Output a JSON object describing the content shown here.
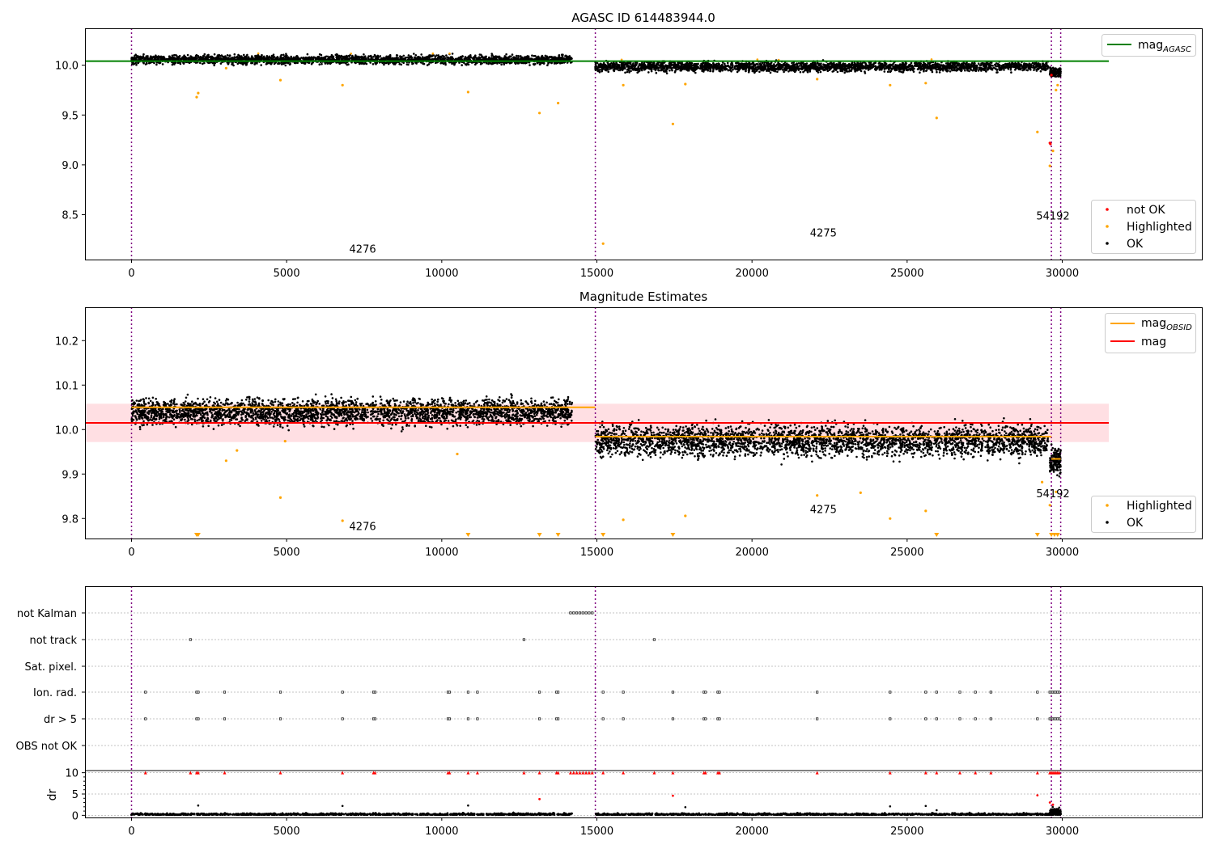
{
  "figure": {
    "title_top": "AGASC ID 614483944.0",
    "title_mid": "Magnitude Estimates"
  },
  "colors": {
    "ok": "#000000",
    "highlighted": "#ffa500",
    "not_ok": "#ff0000",
    "mag_agasc_line": "#008000",
    "mag_obsid_line": "#ffa500",
    "mag_line": "#ff0000",
    "mag_band": "#ffc0c8",
    "obs_boundary": "#800080",
    "grid": "#b0b0b0"
  },
  "chart_data": [
    {
      "name": "agasc",
      "type": "scatter",
      "title": "AGASC ID 614483944.0",
      "xlim": [
        -1500,
        34500
      ],
      "ylim": [
        8.05,
        10.37
      ],
      "xticks": [
        0,
        5000,
        10000,
        15000,
        20000,
        25000,
        30000
      ],
      "yticks": [
        8.5,
        9.0,
        9.5,
        10.0
      ],
      "ytick_labels": [
        "8.5",
        "9.0",
        "9.5",
        "10.0"
      ],
      "legend": {
        "position": "upper-right",
        "entries": [
          {
            "label": "mag",
            "sub": "AGASC",
            "kind": "line",
            "color": "#008000"
          }
        ]
      },
      "legend2": {
        "position": "lower-right",
        "entries": [
          {
            "label": "not OK",
            "kind": "dot",
            "color": "#ff0000"
          },
          {
            "label": "Highlighted",
            "kind": "dot",
            "color": "#ffa500"
          },
          {
            "label": "OK",
            "kind": "dot",
            "color": "#000000"
          }
        ]
      },
      "mag_agasc": {
        "value": 10.04,
        "x": [
          -1500,
          31500
        ]
      },
      "obs_boundaries": [
        0,
        14950,
        29650,
        29950
      ],
      "obs_labels": [
        {
          "text": "4276",
          "x": 7450,
          "y": 8.12
        },
        {
          "text": "4275",
          "x": 22300,
          "y": 8.28
        },
        {
          "text": "54192",
          "x": 29700,
          "y": 8.45
        }
      ],
      "segments": [
        {
          "x": [
            0,
            14200
          ],
          "center": 10.055,
          "spread": 0.045,
          "count": 2600
        },
        {
          "x": [
            14950,
            29550
          ],
          "center": 9.985,
          "spread": 0.05,
          "count": 2600
        },
        {
          "x": [
            29600,
            29950
          ],
          "center": 9.93,
          "spread": 0.05,
          "count": 120
        }
      ],
      "highlighted_outliers": [
        {
          "x": 2100,
          "y": 9.68
        },
        {
          "x": 2150,
          "y": 9.72
        },
        {
          "x": 3050,
          "y": 9.97
        },
        {
          "x": 4800,
          "y": 9.85
        },
        {
          "x": 6800,
          "y": 9.8
        },
        {
          "x": 10850,
          "y": 9.73
        },
        {
          "x": 13150,
          "y": 9.52
        },
        {
          "x": 13750,
          "y": 9.62
        },
        {
          "x": 15200,
          "y": 8.21
        },
        {
          "x": 15850,
          "y": 9.8
        },
        {
          "x": 17450,
          "y": 9.41
        },
        {
          "x": 17850,
          "y": 9.81
        },
        {
          "x": 22100,
          "y": 9.86
        },
        {
          "x": 24450,
          "y": 9.8
        },
        {
          "x": 25600,
          "y": 9.82
        },
        {
          "x": 25950,
          "y": 9.47
        },
        {
          "x": 29200,
          "y": 9.33
        },
        {
          "x": 29600,
          "y": 8.99
        },
        {
          "x": 29700,
          "y": 9.14
        },
        {
          "x": 29800,
          "y": 9.75
        },
        {
          "x": 29850,
          "y": 9.8
        }
      ],
      "not_ok_points": [
        {
          "x": 29600,
          "y": 9.22
        },
        {
          "x": 29620,
          "y": 9.21
        },
        {
          "x": 29650,
          "y": 9.9
        }
      ]
    },
    {
      "name": "magnitude-estimates",
      "type": "scatter",
      "title": "Magnitude Estimates",
      "xlim": [
        -1500,
        34500
      ],
      "ylim": [
        9.755,
        10.275
      ],
      "xticks": [
        0,
        5000,
        10000,
        15000,
        20000,
        25000,
        30000
      ],
      "yticks": [
        9.8,
        9.9,
        10.0,
        10.1,
        10.2
      ],
      "ytick_labels": [
        "9.8",
        "9.9",
        "10.0",
        "10.1",
        "10.2"
      ],
      "legend": {
        "position": "upper-right",
        "entries": [
          {
            "label": "mag",
            "sub": "OBSID",
            "kind": "line",
            "color": "#ffa500"
          },
          {
            "label": "mag",
            "kind": "line",
            "color": "#ff0000"
          }
        ]
      },
      "legend2": {
        "position": "lower-right",
        "entries": [
          {
            "label": "Highlighted",
            "kind": "dot",
            "color": "#ffa500"
          },
          {
            "label": "OK",
            "kind": "dot",
            "color": "#000000"
          }
        ]
      },
      "mag": {
        "value": 10.015,
        "band": [
          9.972,
          10.058
        ],
        "x": [
          -1500,
          31500
        ]
      },
      "mag_obsid": [
        {
          "x": [
            0,
            14950
          ],
          "value": 10.05
        },
        {
          "x": [
            14950,
            29650
          ],
          "value": 9.984
        },
        {
          "x": [
            29650,
            29950
          ],
          "value": 9.934
        }
      ],
      "obs_boundaries": [
        0,
        14950,
        29650,
        29950
      ],
      "obs_labels": [
        {
          "text": "4276",
          "x": 7450,
          "y": 9.774
        },
        {
          "text": "4275",
          "x": 22300,
          "y": 9.812
        },
        {
          "text": "54192",
          "x": 29700,
          "y": 9.848
        }
      ],
      "segments": [
        {
          "x": [
            0,
            14200
          ],
          "center": 10.04,
          "spread": 0.03,
          "count": 3000
        },
        {
          "x": [
            14950,
            29550
          ],
          "center": 9.975,
          "spread": 0.035,
          "count": 3000
        },
        {
          "x": [
            29600,
            29950
          ],
          "center": 9.93,
          "spread": 0.03,
          "count": 150
        }
      ],
      "highlighted_outliers": [
        {
          "x": 3050,
          "y": 9.93
        },
        {
          "x": 3400,
          "y": 9.953
        },
        {
          "x": 4800,
          "y": 9.847
        },
        {
          "x": 4950,
          "y": 9.974
        },
        {
          "x": 6800,
          "y": 9.795
        },
        {
          "x": 10500,
          "y": 9.945
        },
        {
          "x": 15850,
          "y": 9.797
        },
        {
          "x": 17850,
          "y": 9.806
        },
        {
          "x": 22100,
          "y": 9.852
        },
        {
          "x": 23500,
          "y": 9.858
        },
        {
          "x": 24450,
          "y": 9.8
        },
        {
          "x": 25600,
          "y": 9.817
        },
        {
          "x": 29350,
          "y": 9.882
        },
        {
          "x": 29600,
          "y": 9.83
        },
        {
          "x": 29800,
          "y": 9.86
        }
      ],
      "clipped_markers_x": [
        2100,
        2150,
        10850,
        13150,
        13750,
        15200,
        17450,
        25950,
        29200,
        29650,
        29750,
        29850
      ]
    },
    {
      "name": "flags",
      "type": "scatter",
      "xlim": [
        -1500,
        34500
      ],
      "xticks": [
        0,
        5000,
        10000,
        15000,
        20000,
        25000,
        30000
      ],
      "flag_rows": [
        "not Kalman",
        "not track",
        "Sat. pixel.",
        "Ion. rad.",
        "dr > 5",
        "OBS not OK"
      ],
      "flag_points": {
        "not Kalman": [
          14150,
          14250,
          14350,
          14450,
          14550,
          14650,
          14750,
          14850
        ],
        "not track": [
          1900,
          12650,
          16850
        ],
        "Sat. pixel.": [],
        "Ion. rad.": [
          450,
          2100,
          2150,
          3000,
          4800,
          6800,
          7800,
          7850,
          10200,
          10250,
          10850,
          11150,
          13150,
          13700,
          13750,
          15200,
          15850,
          17450,
          18450,
          18500,
          18900,
          18950,
          22100,
          24450,
          25600,
          25950,
          26700,
          27200,
          27700,
          29200,
          29600,
          29650,
          29700,
          29750,
          29800,
          29850,
          29900
        ],
        "dr > 5": [
          450,
          2100,
          2150,
          3000,
          4800,
          6800,
          7800,
          7850,
          10200,
          10250,
          10850,
          11150,
          13150,
          13700,
          13750,
          15200,
          15850,
          17450,
          18450,
          18500,
          18900,
          18950,
          22100,
          24450,
          25600,
          25950,
          26700,
          27200,
          27700,
          29200,
          29600,
          29650,
          29700,
          29750,
          29800,
          29850,
          29900
        ],
        "OBS not OK": []
      },
      "dr": {
        "ylabel": "dr",
        "ylim": [
          -0.5,
          10.5
        ],
        "yticks": [
          0,
          5,
          10
        ],
        "ytick_labels": [
          "0",
          "5",
          "10"
        ],
        "max_value": 10,
        "capped_x": [
          450,
          1900,
          2100,
          2150,
          3000,
          4800,
          6800,
          7800,
          7850,
          10200,
          10250,
          10850,
          11150,
          12650,
          13150,
          13700,
          13750,
          14150,
          14250,
          14350,
          14450,
          14550,
          14650,
          14750,
          14850,
          15200,
          15850,
          16850,
          17450,
          18450,
          18500,
          18900,
          18950,
          22100,
          24450,
          25600,
          25950,
          26700,
          27200,
          27700,
          29200,
          29600,
          29650,
          29700,
          29750,
          29800,
          29850,
          29900
        ],
        "red_points": [
          {
            "x": 13150,
            "y": 3.8
          },
          {
            "x": 17450,
            "y": 4.6
          },
          {
            "x": 29200,
            "y": 4.7
          },
          {
            "x": 29600,
            "y": 3.0
          },
          {
            "x": 29700,
            "y": 2.5
          }
        ],
        "black_outliers": [
          {
            "x": 2150,
            "y": 2.3
          },
          {
            "x": 6800,
            "y": 2.2
          },
          {
            "x": 10850,
            "y": 2.3
          },
          {
            "x": 17850,
            "y": 1.9
          },
          {
            "x": 24450,
            "y": 2.1
          },
          {
            "x": 25600,
            "y": 2.2
          },
          {
            "x": 25950,
            "y": 1.2
          }
        ]
      },
      "obs_boundaries": [
        0,
        14950,
        29650,
        29950
      ]
    }
  ]
}
